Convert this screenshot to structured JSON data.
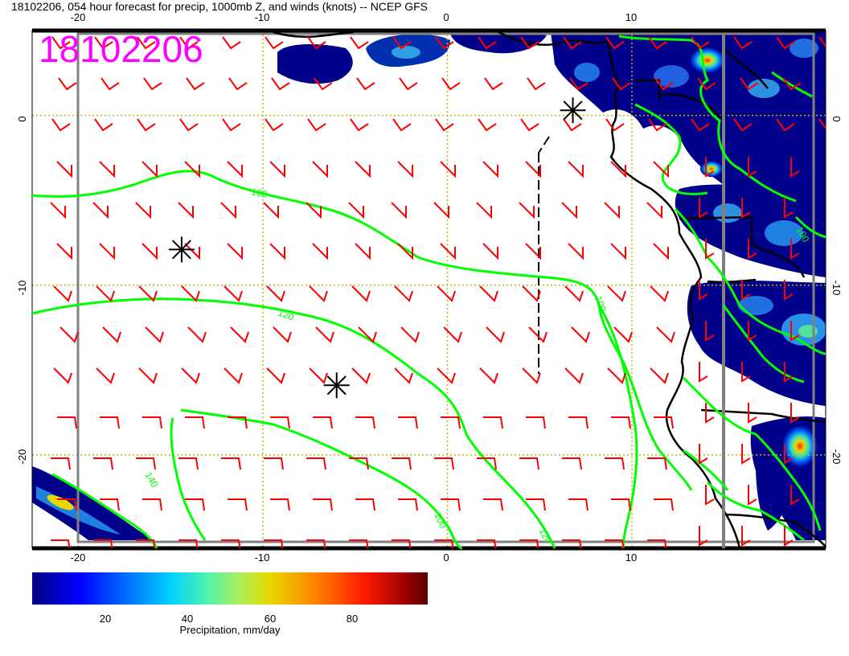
{
  "title": "18102206, 054 hour forecast for precip, 1000mb Z, and winds (knots) -- NCEP GFS",
  "stamp": "18102206",
  "axes": {
    "lon_ticks": [
      "-20",
      "-10",
      "0",
      "10"
    ],
    "lat_ticks": [
      "0",
      "-10",
      "-20"
    ],
    "lon_range": [
      -22.5,
      20.5
    ],
    "lat_range": [
      -25.5,
      5
    ]
  },
  "contours": {
    "labels": [
      "100",
      "120",
      "140",
      "100",
      "120",
      "100",
      "100"
    ],
    "color": "#00ff00"
  },
  "wind_barbs": {
    "color": "#ff0000"
  },
  "low_markers": [
    {
      "lon": -14.4,
      "lat": -7.9
    },
    {
      "lon": -6.0,
      "lat": -15.9
    },
    {
      "lon": 6.8,
      "lat": 0.3
    }
  ],
  "colorbar": {
    "ticks": [
      "20",
      "40",
      "60",
      "80"
    ],
    "label": "Precipitation, mm/day",
    "min": 1,
    "max": 96
  },
  "colors": {
    "stamp": "#ff00ff",
    "grid": "#c8b400",
    "coast": "#000000"
  }
}
